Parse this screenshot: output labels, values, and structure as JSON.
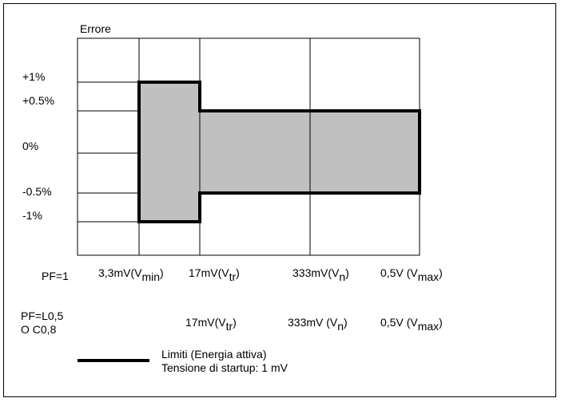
{
  "axis": {
    "ylabel": "Errore"
  },
  "y_ticks": [
    "+1%",
    "+0.5%",
    "0%",
    "-0.5%",
    "-1%"
  ],
  "row_pf1": {
    "label": "PF=1",
    "t1_main": "3,3mV(V",
    "t1_sub": "min",
    "t1_end": ")",
    "t2_main": "17mV(V",
    "t2_sub": "tr",
    "t2_end": ")",
    "t3_main": "333mV(V",
    "t3_sub": "n",
    "t3_end": ")",
    "t4_main": "0,5V (V",
    "t4_sub": "max",
    "t4_end": ")"
  },
  "row_pf2": {
    "label_line1": "PF=L0,5",
    "label_line2": "O C0,8",
    "t2_main": "17mV(V",
    "t2_sub": "tr",
    "t2_end": ")",
    "t3_main": "333mV (V",
    "t3_sub": "n",
    "t3_end": ")",
    "t4_main": "0,5V (V",
    "t4_sub": "max",
    "t4_end": ")"
  },
  "legend": {
    "line1": "Limiti (Energia attiva)",
    "line2": "Tensione di startup: 1 mV"
  },
  "colors": {
    "fill": "#c0c0c0",
    "stroke": "#000000"
  },
  "limit_profile": [
    {
      "from": "Vmin",
      "to": "Vtr",
      "upper_percent": 1,
      "lower_percent": -1
    },
    {
      "from": "Vtr",
      "to": "Vmax",
      "upper_percent": 0.5,
      "lower_percent": -0.5
    }
  ]
}
